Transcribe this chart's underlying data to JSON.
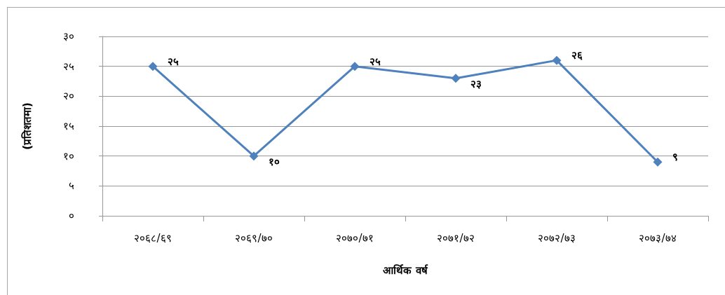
{
  "chart_data": {
    "type": "line",
    "xlabel": "आर्थिक वर्ष",
    "ylabel": "(प्रतिशतमा)",
    "categories": [
      "२०६८/६९",
      "२०६९/७०",
      "२०७०/७१",
      "२०७१/७२",
      "२०७२/७३",
      "२०७३/७४"
    ],
    "series": [
      {
        "color": "#4f81bd",
        "values": [
          25,
          10,
          25,
          23,
          26,
          9
        ],
        "value_labels": [
          "२५",
          "१०",
          "२५",
          "२३",
          "२६",
          "९"
        ]
      }
    ],
    "ylim": [
      0,
      30
    ],
    "yticks": [
      {
        "value": 0,
        "label": "०"
      },
      {
        "value": 5,
        "label": "५"
      },
      {
        "value": 10,
        "label": "१०"
      },
      {
        "value": 15,
        "label": "१५"
      },
      {
        "value": 20,
        "label": "२०"
      },
      {
        "value": 25,
        "label": "२५"
      },
      {
        "value": 30,
        "label": "३०"
      }
    ],
    "grid": "y",
    "marker": "diamond",
    "line_style": "solid"
  }
}
